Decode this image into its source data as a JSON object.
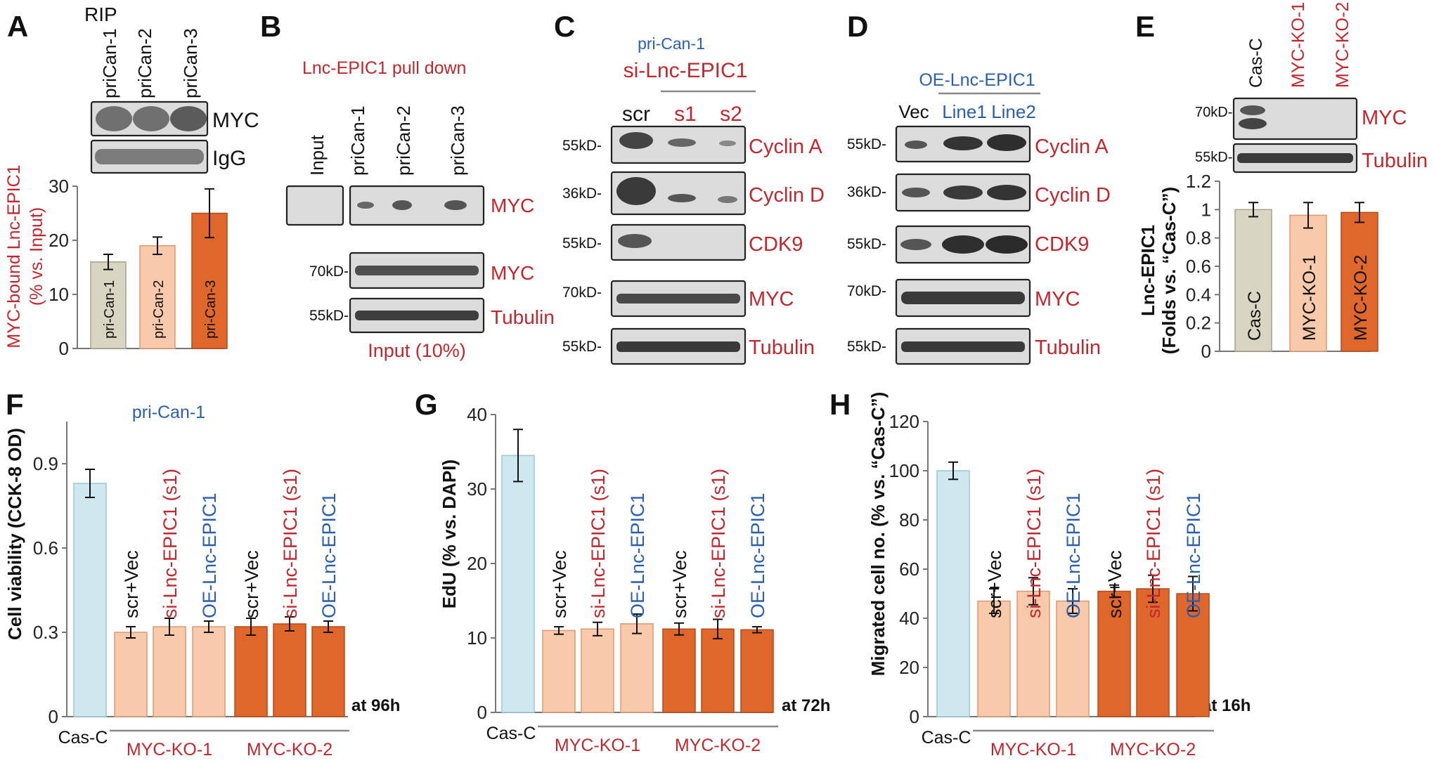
{
  "panels": {
    "A": {
      "letter": "A",
      "header": "RIP",
      "lanes": [
        "priCan-1",
        "priCan-2",
        "priCan-3"
      ],
      "blots": [
        "MYC",
        "IgG"
      ],
      "ylabel1": "MYC-bound Lnc-EPIC1",
      "ylabel2": "(% vs. Input)",
      "colors": [
        "#d9d5c3",
        "#f8c9aa",
        "#e0672c"
      ]
    },
    "B": {
      "letter": "B",
      "title": "Lnc-EPIC1 pull down",
      "lanes": [
        "Input",
        "priCan-1",
        "priCan-2",
        "priCan-3"
      ],
      "rows": [
        {
          "label": "MYC",
          "kd": ""
        },
        {
          "label": "MYC",
          "kd": "70kD-"
        },
        {
          "label": "Tubulin",
          "kd": "55kD-"
        }
      ],
      "footer": "Input (10%)"
    },
    "C": {
      "letter": "C",
      "top": "pri-Can-1",
      "group": "si-Lnc-EPIC1",
      "lanes": [
        "scr",
        "s1",
        "s2"
      ],
      "rows": [
        {
          "label": "Cyclin A",
          "kd": "55kD-"
        },
        {
          "label": "Cyclin D",
          "kd": "36kD-"
        },
        {
          "label": "CDK9",
          "kd": "55kD-"
        },
        {
          "label": "MYC",
          "kd": "70kD-"
        },
        {
          "label": "Tubulin",
          "kd": "55kD-"
        }
      ]
    },
    "D": {
      "letter": "D",
      "group": "OE-Lnc-EPIC1",
      "lanes": [
        "Vec",
        "Line1",
        "Line2"
      ],
      "rows": [
        {
          "label": "Cyclin A",
          "kd": "55kD-"
        },
        {
          "label": "Cyclin D",
          "kd": "36kD-"
        },
        {
          "label": "CDK9",
          "kd": "55kD-"
        },
        {
          "label": "MYC",
          "kd": "70kD-"
        },
        {
          "label": "Tubulin",
          "kd": "55kD-"
        }
      ]
    },
    "E": {
      "letter": "E",
      "lanes": [
        "Cas-C",
        "MYC-KO-1",
        "MYC-KO-2"
      ],
      "rows": [
        {
          "label": "MYC",
          "kd": "70kD-"
        },
        {
          "label": "Tubulin",
          "kd": "55kD-"
        }
      ],
      "ylabel1": "Lnc-EPIC1",
      "ylabel2": "(Folds vs. “Cas-C”)"
    },
    "F": {
      "letter": "F",
      "subtitle": "pri-Can-1",
      "time": "at 96h"
    },
    "G": {
      "letter": "G",
      "time": "at 72h"
    },
    "H": {
      "letter": "H",
      "time": "at 16h"
    }
  },
  "bar_labels": [
    "scr+Vec",
    "si-Lnc-EPIC1 (s1)",
    "OE-Lnc-EPIC1"
  ],
  "groups": [
    "Cas-C",
    "MYC-KO-1",
    "MYC-KO-2"
  ],
  "chart_data": [
    {
      "panel": "A",
      "type": "bar",
      "categories": [
        "pri-Can-1",
        "pri-Can-2",
        "pri-Can-3"
      ],
      "values": [
        16,
        19,
        25
      ],
      "errors": [
        1.4,
        1.6,
        4.5
      ],
      "ylabel": "MYC-bound Lnc-EPIC1 (% vs. Input)",
      "ylim": [
        0,
        30
      ],
      "yticks": [
        0,
        10,
        20,
        30
      ]
    },
    {
      "panel": "E",
      "type": "bar",
      "categories": [
        "Cas-C",
        "MYC-KO-1",
        "MYC-KO-2"
      ],
      "values": [
        1.0,
        0.96,
        0.98
      ],
      "errors": [
        0.05,
        0.09,
        0.07
      ],
      "ylabel": "Lnc-EPIC1 (Folds vs. “Cas-C”)",
      "ylim": [
        0,
        1.2
      ],
      "yticks": [
        0,
        0.2,
        0.4,
        0.6,
        0.8,
        1,
        1.2
      ]
    },
    {
      "panel": "F",
      "type": "bar",
      "categories": [
        "Cas-C",
        "scr+Vec",
        "si-Lnc-EPIC1 (s1)",
        "OE-Lnc-EPIC1",
        "scr+Vec",
        "si-Lnc-EPIC1 (s1)",
        "OE-Lnc-EPIC1"
      ],
      "groups": [
        "Cas-C",
        "MYC-KO-1",
        "MYC-KO-2"
      ],
      "values": [
        0.83,
        0.3,
        0.32,
        0.32,
        0.32,
        0.33,
        0.32
      ],
      "errors": [
        0.05,
        0.02,
        0.03,
        0.02,
        0.03,
        0.025,
        0.02
      ],
      "ylabel": "Cell viability (CCK-8 OD)",
      "ylim": [
        0,
        1.05
      ],
      "yticks": [
        0,
        0.3,
        0.6,
        0.9
      ]
    },
    {
      "panel": "G",
      "type": "bar",
      "categories": [
        "Cas-C",
        "scr+Vec",
        "si-Lnc-EPIC1 (s1)",
        "OE-Lnc-EPIC1",
        "scr+Vec",
        "si-Lnc-EPIC1 (s1)",
        "OE-Lnc-EPIC1"
      ],
      "groups": [
        "Cas-C",
        "MYC-KO-1",
        "MYC-KO-2"
      ],
      "values": [
        34.5,
        11.0,
        11.2,
        11.9,
        11.2,
        11.2,
        11.1
      ],
      "errors": [
        3.5,
        0.5,
        0.9,
        1.3,
        0.8,
        1.3,
        0.4
      ],
      "ylabel": "EdU (% vs. DAPI)",
      "ylim": [
        0,
        40
      ],
      "yticks": [
        0,
        10,
        20,
        30,
        40
      ]
    },
    {
      "panel": "H",
      "type": "bar",
      "categories": [
        "Cas-C",
        "scr+Vec",
        "si-Lnc-EPIC1 (s1)",
        "OE-Lnc-EPIC1",
        "scr+Vec",
        "si-Lnc-EPIC1 (s1)",
        "OE-Lnc-EPIC1"
      ],
      "groups": [
        "Cas-C",
        "MYC-KO-1",
        "MYC-KO-2"
      ],
      "values": [
        100,
        47,
        51,
        47,
        51,
        52,
        50
      ],
      "errors": [
        3.5,
        5.0,
        5.5,
        5.0,
        2.5,
        5.5,
        7.0
      ],
      "ylabel": "Migrated cell no. (% vs. “Cas-C”)",
      "ylim": [
        0,
        120
      ],
      "yticks": [
        0,
        20,
        40,
        60,
        80,
        100,
        120
      ]
    }
  ]
}
